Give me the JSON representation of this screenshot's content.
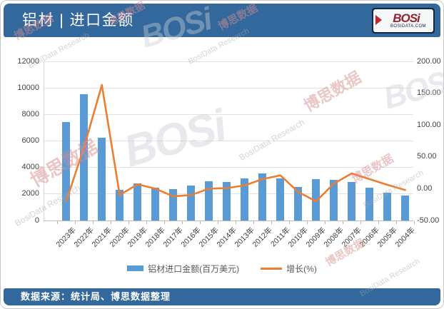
{
  "header": {
    "title": "铝材 | 进口金额",
    "logo": {
      "word": "BOSi",
      "sub": "BOSIDATA.COM"
    }
  },
  "chart_data": {
    "type": "bar+line combo",
    "categories": [
      "2023年",
      "2022年",
      "2021年",
      "2020年",
      "2019年",
      "2018年",
      "2017年",
      "2016年",
      "2015年",
      "2014年",
      "2013年",
      "2012年",
      "2011年",
      "2010年",
      "2009年",
      "2008年",
      "2007年",
      "2006年",
      "2005年",
      "2004年"
    ],
    "series": [
      {
        "name": "铝材进口金额(百万美元)",
        "type": "bar",
        "axis": "left",
        "color": "#5B9BD5",
        "values": [
          7450,
          9550,
          6250,
          2300,
          2800,
          2450,
          2350,
          2650,
          2950,
          2900,
          3200,
          3550,
          3200,
          2550,
          3100,
          3050,
          2900,
          2450,
          2100,
          1900
        ]
      },
      {
        "name": "增长(%)",
        "type": "line",
        "axis": "right",
        "color": "#ED7D31",
        "values": [
          -20,
          65,
          163,
          -10,
          7,
          0,
          -12,
          -10,
          0,
          1,
          5,
          15,
          21,
          -5,
          -20,
          8,
          24,
          15,
          6,
          -2
        ]
      }
    ],
    "left_axis": {
      "min": 0,
      "max": 12000,
      "step": 2000,
      "tick_labels": [
        "0",
        "2000",
        "4000",
        "6000",
        "8000",
        "10000",
        "12000"
      ]
    },
    "right_axis": {
      "min": -50,
      "max": 200,
      "step": 50,
      "tick_labels": [
        "-50.00",
        "0.00",
        "50.00",
        "100.00",
        "150.00",
        "200.00"
      ]
    },
    "grid": true,
    "legend_position": "bottom",
    "title": "铝材 | 进口金额"
  },
  "legend": {
    "items": [
      {
        "label": "铝材进口金额(百万美元)",
        "color": "#5B9BD5",
        "shape": "rect"
      },
      {
        "label": "增长(%)",
        "color": "#ED7D31",
        "shape": "line"
      }
    ]
  },
  "footer": {
    "source_text": "数据来源：统计局、博思数据整理"
  },
  "watermarks": {
    "cn": "博思数据",
    "en": "BosiData Research",
    "logo": "BOSi"
  },
  "colors": {
    "header_bg": "#33689d",
    "bar": "#5B9BD5",
    "line": "#ED7D31",
    "grid": "#e2e2e2",
    "axis_text": "#444444",
    "logo_red": "#c0272d"
  }
}
